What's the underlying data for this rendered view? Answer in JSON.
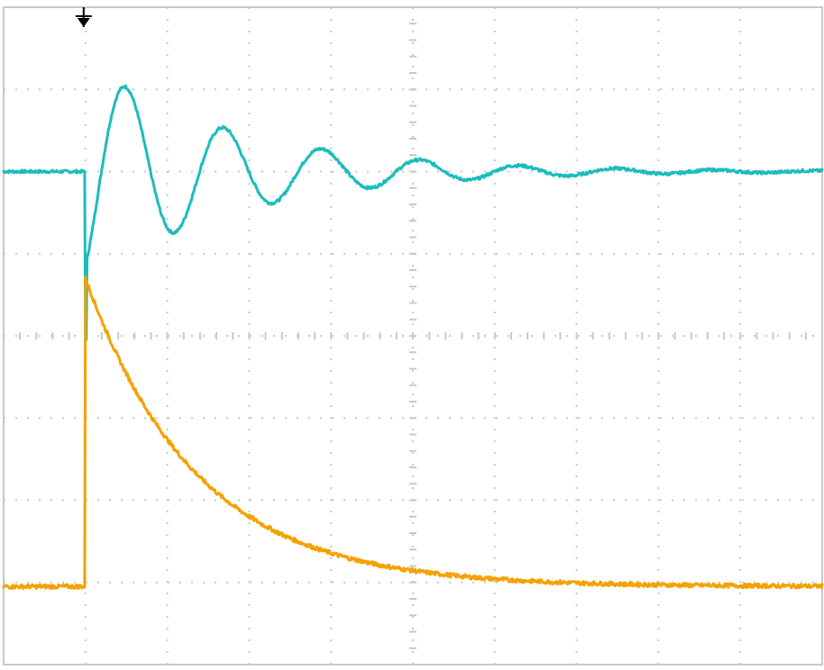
{
  "chart_data": {
    "type": "line",
    "xlabel": "",
    "ylabel": "",
    "x_divisions": 10,
    "y_divisions": 8,
    "xlim": [
      0,
      10
    ],
    "ylim": [
      0,
      8
    ],
    "grid": true,
    "trigger_marker": {
      "x": 1.0,
      "icon": "trigger-arrow-icon"
    },
    "series": [
      {
        "color": "#1cbcbc",
        "step_time": 1.0,
        "baseline": 6.0,
        "step_min": 3.95,
        "response": "underdamped",
        "peaks": [
          {
            "x": 1.6,
            "y": 7.15
          },
          {
            "x": 2.2,
            "y": 5.35
          },
          {
            "x": 2.85,
            "y": 6.55
          },
          {
            "x": 3.45,
            "y": 5.75
          },
          {
            "x": 4.05,
            "y": 6.25
          },
          {
            "x": 4.65,
            "y": 5.9
          },
          {
            "x": 5.25,
            "y": 6.1
          },
          {
            "x": 5.9,
            "y": 5.95
          },
          {
            "x": 6.5,
            "y": 6.05
          },
          {
            "x": 7.1,
            "y": 5.97
          }
        ],
        "final_value": 6.0
      },
      {
        "color": "#f5a100",
        "step_time": 1.0,
        "baseline": 0.95,
        "step_peak": 4.7,
        "response": "exponential-decay",
        "decay_points": [
          {
            "x": 1.0,
            "y": 4.6
          },
          {
            "x": 1.5,
            "y": 3.95
          },
          {
            "x": 2.0,
            "y": 3.3
          },
          {
            "x": 2.5,
            "y": 2.6
          },
          {
            "x": 3.0,
            "y": 2.1
          },
          {
            "x": 3.5,
            "y": 1.75
          },
          {
            "x": 4.0,
            "y": 1.5
          },
          {
            "x": 5.0,
            "y": 1.2
          },
          {
            "x": 6.0,
            "y": 1.05
          },
          {
            "x": 7.0,
            "y": 1.0
          },
          {
            "x": 8.0,
            "y": 0.97
          },
          {
            "x": 10.0,
            "y": 0.95
          }
        ],
        "final_value": 0.95
      }
    ]
  }
}
